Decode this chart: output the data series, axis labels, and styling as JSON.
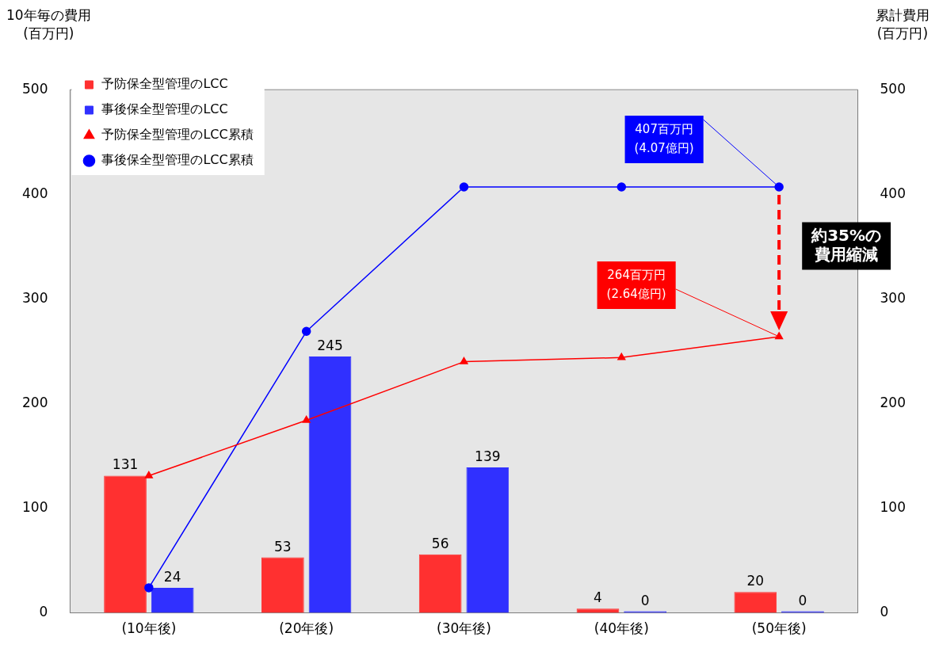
{
  "chart_data": {
    "type": "bar",
    "ylabel": "10年毎の費用\n(百万円)",
    "y2label": "累計費用\n(百万円)",
    "categories": [
      "(10年後)",
      "(20年後)",
      "(30年後)",
      "(40年後)",
      "(50年後)"
    ],
    "series": [
      {
        "name": "予防保全型管理のLCC",
        "color": "#ff3030",
        "values": [
          131,
          53,
          56,
          4,
          20
        ],
        "value_labels": [
          "131",
          "53",
          "56",
          "4",
          "20"
        ]
      },
      {
        "name": "事後保全型管理のLCC",
        "color": "#3030ff",
        "values": [
          24,
          245,
          139,
          0,
          0
        ],
        "value_labels": [
          "24",
          "245",
          "139",
          "0",
          "0"
        ]
      },
      {
        "name": "予防保全型管理のLCC累積",
        "type": "line",
        "axis": "y2",
        "marker": "triangle",
        "color": "#ff0000",
        "values": [
          131,
          184,
          240,
          244,
          264
        ]
      },
      {
        "name": "事後保全型管理のLCC累積",
        "type": "line",
        "axis": "y2",
        "marker": "circle",
        "color": "#0000ff",
        "values": [
          24,
          269,
          407,
          407,
          407
        ]
      }
    ],
    "ylim": [
      0,
      500
    ],
    "yticks": [
      0,
      100,
      200,
      300,
      400,
      500
    ],
    "y2lim": [
      0,
      500
    ],
    "y2ticks": [
      0,
      100,
      200,
      300,
      400,
      500
    ],
    "grid": false,
    "legend": "top left",
    "annotations": [
      {
        "text": "407百万円\n(4.07億円)",
        "x": "(50年後)",
        "y": 407
      },
      {
        "text": "264百万円\n(2.64億円)",
        "x": "(50年後)",
        "y": 264
      },
      "約35%の費用縮減"
    ]
  }
}
